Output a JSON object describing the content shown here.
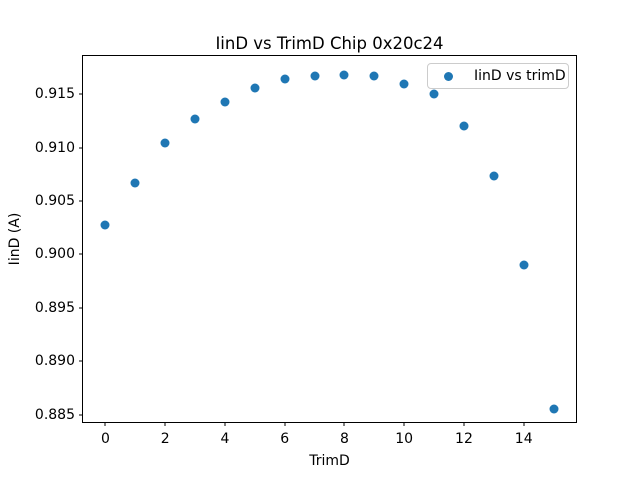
{
  "chart_data": {
    "type": "scatter",
    "title": "IinD vs TrimD Chip 0x20c24",
    "xlabel": "TrimD",
    "ylabel": "IinD (A)",
    "legend": [
      "IinD vs trimD"
    ],
    "legend_position": "upper right",
    "marker_color": "#1f77b4",
    "background_color": "#ffffff",
    "grid": false,
    "x": [
      0,
      1,
      2,
      3,
      4,
      5,
      6,
      7,
      8,
      9,
      10,
      11,
      12,
      13,
      14,
      15
    ],
    "y": [
      0.9028,
      0.9067,
      0.9104,
      0.9127,
      0.9143,
      0.9156,
      0.9164,
      0.9167,
      0.9168,
      0.9167,
      0.916,
      0.915,
      0.912,
      0.9074,
      0.899,
      0.8855
    ],
    "xlim": [
      -0.75,
      15.75
    ],
    "ylim": [
      0.8843,
      0.9186
    ],
    "xticks": [
      0,
      2,
      4,
      6,
      8,
      10,
      12,
      14
    ],
    "yticks": [
      0.885,
      0.89,
      0.895,
      0.9,
      0.905,
      0.91,
      0.915
    ]
  }
}
